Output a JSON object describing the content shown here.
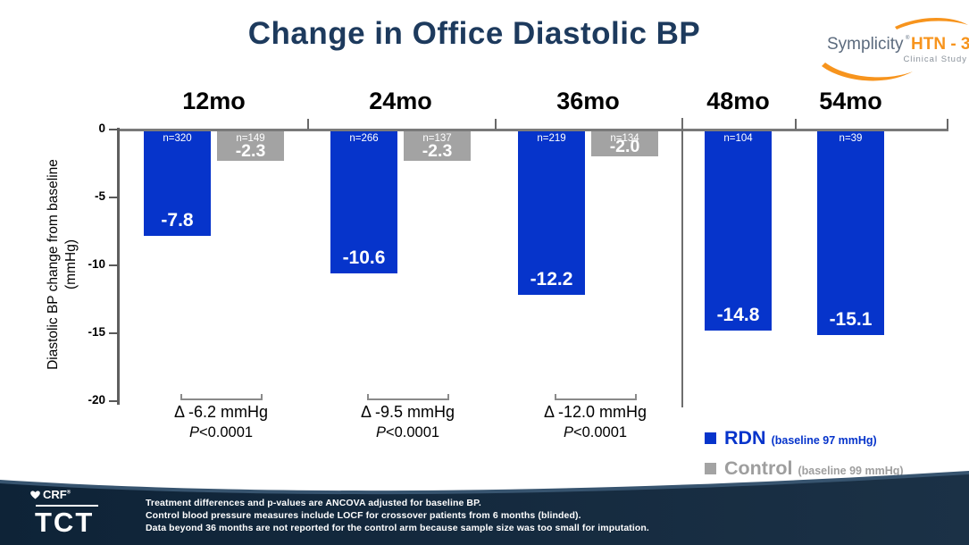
{
  "header": {
    "title": "Change in Office Diastolic BP"
  },
  "brand": {
    "name": "Symplicity",
    "reg": "®",
    "program": "HTN - 3",
    "tagline": "Clinical Study"
  },
  "chart_data": {
    "type": "bar",
    "title": "Change in Office Diastolic BP",
    "ylabel_line1": "Diastolic BP change from baseline",
    "ylabel_line2": "(mmHg)",
    "ylim": [
      -20,
      0
    ],
    "yticks": [
      0,
      -5,
      -10,
      -15,
      -20
    ],
    "grid": false,
    "legend_position": "bottom-right",
    "series": [
      {
        "name": "RDN",
        "color": "#0634CB",
        "baseline_note": "(baseline 97 mmHg)"
      },
      {
        "name": "Control",
        "color": "#A3A3A3",
        "baseline_note": "(baseline 99 mmHg)"
      }
    ],
    "groups": [
      {
        "label": "12mo",
        "bars": [
          {
            "series": "RDN",
            "value": -7.8,
            "n": "n=320"
          },
          {
            "series": "Control",
            "value": -2.3,
            "n": "n=149"
          }
        ],
        "delta": "Δ -6.2 mmHg",
        "p": "P<0.0001"
      },
      {
        "label": "24mo",
        "bars": [
          {
            "series": "RDN",
            "value": -10.6,
            "n": "n=266"
          },
          {
            "series": "Control",
            "value": -2.3,
            "n": "n=137"
          }
        ],
        "delta": "Δ -9.5 mmHg",
        "p": "P<0.0001"
      },
      {
        "label": "36mo",
        "bars": [
          {
            "series": "RDN",
            "value": -12.2,
            "n": "n=219"
          },
          {
            "series": "Control",
            "value": -2.0,
            "n": "n=134"
          }
        ],
        "delta": "Δ -12.0 mmHg",
        "p": "P<0.0001"
      },
      {
        "label": "48mo",
        "bars": [
          {
            "series": "RDN",
            "value": -14.8,
            "n": "n=104"
          }
        ]
      },
      {
        "label": "54mo",
        "bars": [
          {
            "series": "RDN",
            "value": -15.1,
            "n": "n=39"
          }
        ]
      }
    ]
  },
  "footnotes": [
    "Treatment differences and p-values are ANCOVA adjusted for baseline BP.",
    "Control blood pressure measures include LOCF for crossover patients from 6 months (blinded).",
    "Data beyond 36 months are not reported for the control arm because sample size was too small for imputation."
  ],
  "footer_logo": {
    "crf": "CRF",
    "reg": "®",
    "tct": "TCT"
  },
  "colors": {
    "rdn_blue": "#0634CB",
    "control_gray": "#A3A3A3",
    "title_navy": "#1D3A5D",
    "footer_navy": "#0E2337",
    "brand_orange": "#F7941D"
  }
}
